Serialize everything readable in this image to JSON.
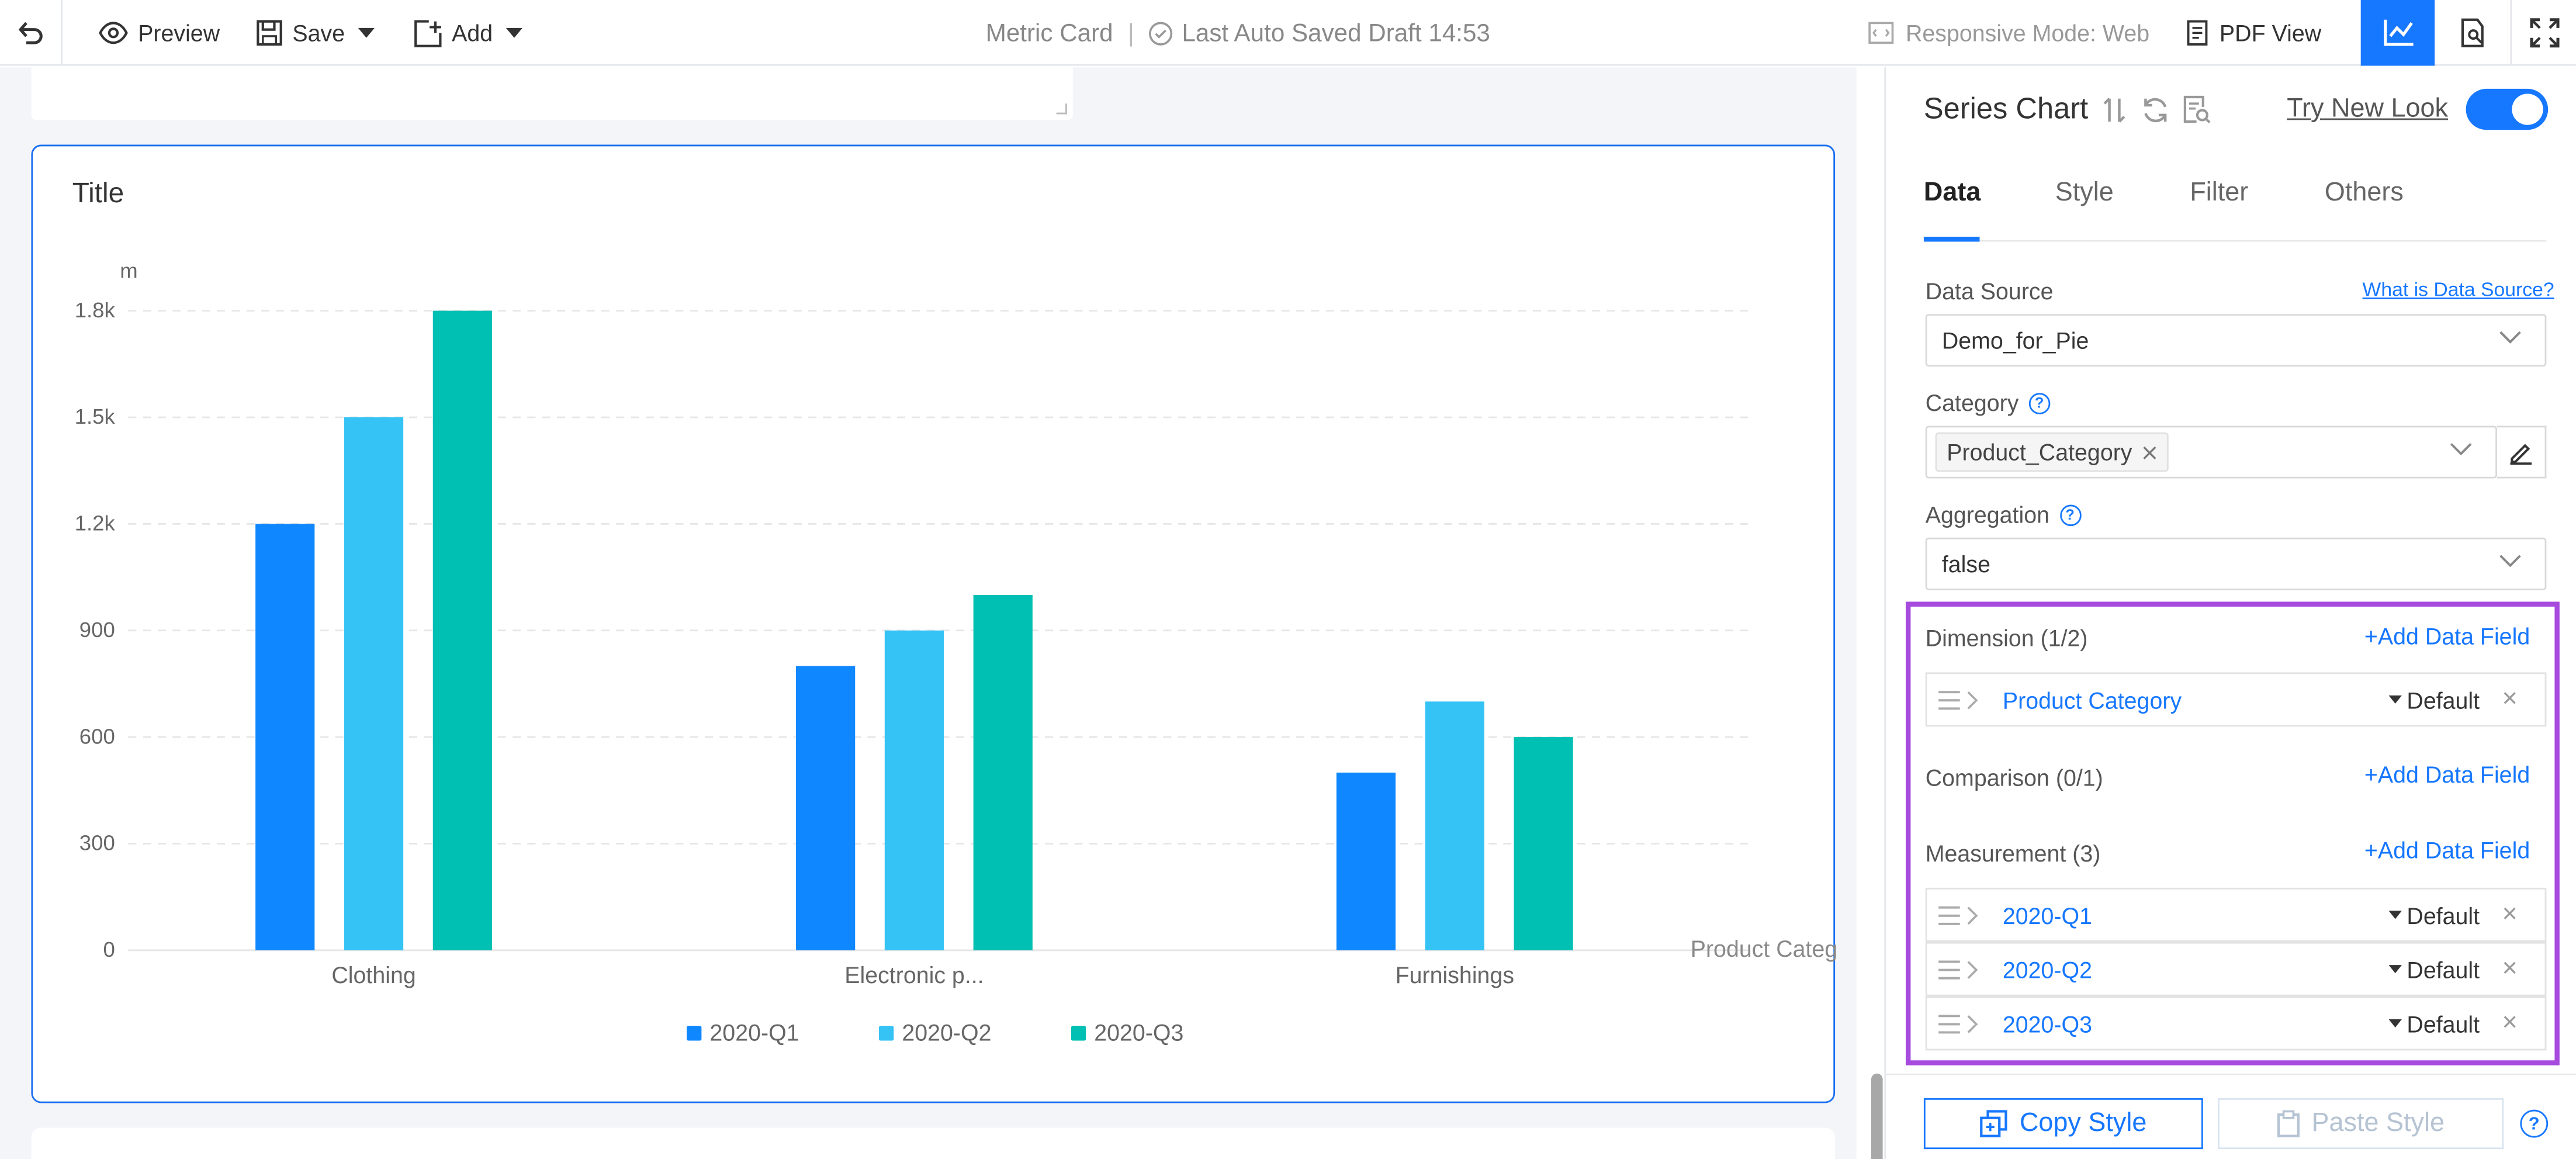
{
  "toolbar": {
    "preview_label": "Preview",
    "save_label": "Save",
    "add_label": "Add",
    "card_name": "Metric Card",
    "separator": "|",
    "autosave_text": "Last Auto Saved Draft 14:53",
    "responsive_mode_label": "Responsive Mode: Web",
    "pdf_view_label": "PDF View"
  },
  "card": {
    "title": "Title"
  },
  "chart_data": {
    "type": "bar",
    "title": "",
    "ylabel": "m",
    "xlabel": "Product Categ",
    "categories": [
      "Clothing",
      "Electronic p...",
      "Furnishings"
    ],
    "series": [
      {
        "name": "2020-Q1",
        "color": "#0f87ff",
        "values": [
          1200,
          800,
          500
        ]
      },
      {
        "name": "2020-Q2",
        "color": "#35c2f5",
        "values": [
          1500,
          900,
          700
        ]
      },
      {
        "name": "2020-Q3",
        "color": "#00bfb3",
        "values": [
          1800,
          1000,
          600
        ]
      }
    ],
    "ylim": [
      0,
      1800
    ],
    "yticks": [
      0,
      300,
      600,
      900,
      1200,
      1500,
      1800
    ],
    "ytick_labels": [
      "0",
      "300",
      "600",
      "900",
      "1.2k",
      "1.5k",
      "1.8k"
    ],
    "grid": true,
    "legend_position": "bottom-center"
  },
  "panel": {
    "title": "Series Chart",
    "try_new_look": "Try New Look",
    "toggle_on": true,
    "tabs": [
      {
        "label": "Data"
      },
      {
        "label": "Style"
      },
      {
        "label": "Filter"
      },
      {
        "label": "Others"
      }
    ],
    "data_source_label": "Data Source",
    "data_source_link": "What is Data Source?",
    "data_source_value": "Demo_for_Pie",
    "category_label": "Category",
    "category_tag": "Product_Category",
    "aggregation_label": "Aggregation",
    "aggregation_value": "false",
    "dimension_label": "Dimension (1/2)",
    "comparison_label": "Comparison (0/1)",
    "measurement_label": "Measurement (3)",
    "add_data_field": "+Add Data Field",
    "dimension_fields": [
      {
        "name": "Product Category",
        "mode": "Default"
      }
    ],
    "measurement_fields": [
      {
        "name": "2020-Q1",
        "mode": "Default"
      },
      {
        "name": "2020-Q2",
        "mode": "Default"
      },
      {
        "name": "2020-Q3",
        "mode": "Default"
      }
    ],
    "copy_style": "Copy Style",
    "paste_style": "Paste Style"
  },
  "colors": {
    "accent": "#1677ff",
    "highlight_box": "#a64bde"
  }
}
